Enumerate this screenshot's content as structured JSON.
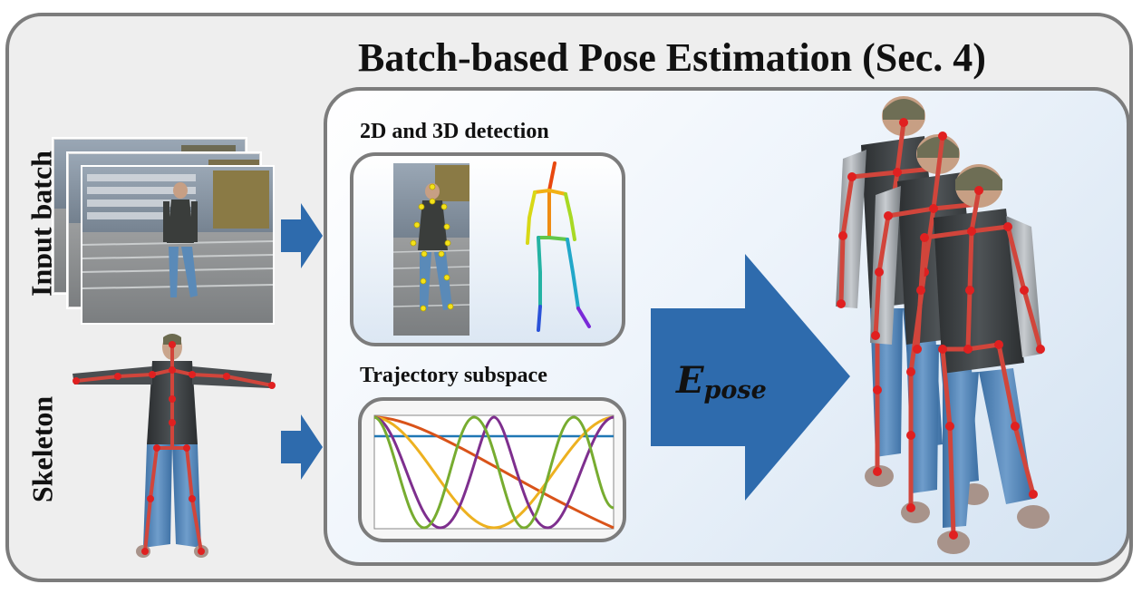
{
  "title": "Batch-based Pose Estimation  (Sec. 4)",
  "labels": {
    "input_batch": "Input batch",
    "skeleton": "Skeleton",
    "detection": "2D and 3D detection",
    "trajectory": "Trajectory subspace",
    "energy_symbol": "E",
    "energy_subscript": "pose"
  },
  "colors": {
    "frame_border": "#7c7c7c",
    "arrow_blue": "#2e6bad",
    "bone_red": "#d1453b",
    "joint_red": "#e02020"
  }
}
